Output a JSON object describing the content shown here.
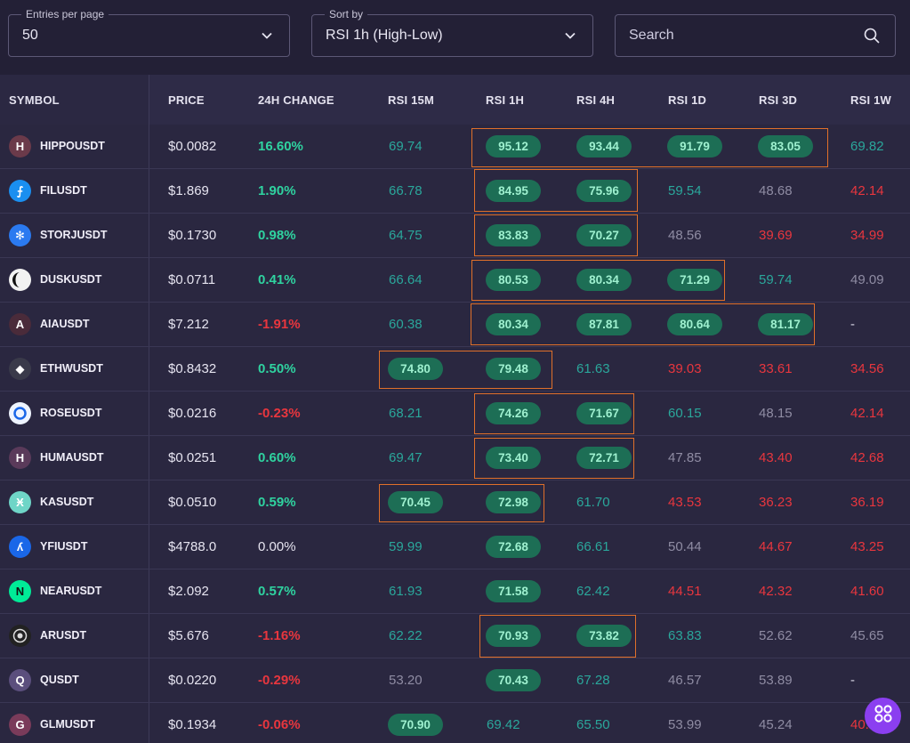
{
  "controls": {
    "entries_label": "Entries per page",
    "entries_value": "50",
    "sort_label": "Sort by",
    "sort_value": "RSI 1h (High-Low)",
    "search_placeholder": "Search"
  },
  "columns": [
    "SYMBOL",
    "PRICE",
    "24H CHANGE",
    "RSI 15M",
    "RSI 1H",
    "RSI 4H",
    "RSI 1D",
    "RSI 3D",
    "RSI 1W"
  ],
  "colors": {
    "background": "#232036",
    "header": "#2e2b47",
    "positive": "#2fd3a0",
    "negative": "#e8363e",
    "pill_bg": "#1d6e55",
    "highlight_border": "#e0702a",
    "fab": "#8b3ff0"
  },
  "rows": [
    {
      "symbol": "HIPPOUSDT",
      "icon": "hippo-icon",
      "avatar_letter": "H",
      "price": "$0.0082",
      "change": "16.60%",
      "rsi": [
        "69.74",
        "95.12",
        "93.44",
        "91.79",
        "83.05",
        "69.82"
      ]
    },
    {
      "symbol": "FILUSDT",
      "icon": "filecoin-icon",
      "avatar_letter": "⨍",
      "price": "$1.869",
      "change": "1.90%",
      "rsi": [
        "66.78",
        "84.95",
        "75.96",
        "59.54",
        "48.68",
        "42.14"
      ]
    },
    {
      "symbol": "STORJUSDT",
      "icon": "storj-icon",
      "avatar_letter": "✻",
      "price": "$0.1730",
      "change": "0.98%",
      "rsi": [
        "64.75",
        "83.83",
        "70.27",
        "48.56",
        "39.69",
        "34.99"
      ]
    },
    {
      "symbol": "DUSKUSDT",
      "icon": "dusk-icon",
      "avatar_letter": "",
      "price": "$0.0711",
      "change": "0.41%",
      "rsi": [
        "66.64",
        "80.53",
        "80.34",
        "71.29",
        "59.74",
        "49.09"
      ]
    },
    {
      "symbol": "AIAUSDT",
      "icon": "aia-icon",
      "avatar_letter": "A",
      "price": "$7.212",
      "change": "-1.91%",
      "rsi": [
        "60.38",
        "80.34",
        "87.81",
        "80.64",
        "81.17",
        "-"
      ]
    },
    {
      "symbol": "ETHWUSDT",
      "icon": "ethereum-icon",
      "avatar_letter": "◆",
      "price": "$0.8432",
      "change": "0.50%",
      "rsi": [
        "74.80",
        "79.48",
        "61.63",
        "39.03",
        "33.61",
        "34.56"
      ]
    },
    {
      "symbol": "ROSEUSDT",
      "icon": "rose-icon",
      "avatar_letter": "",
      "price": "$0.0216",
      "change": "-0.23%",
      "rsi": [
        "68.21",
        "74.26",
        "71.67",
        "60.15",
        "48.15",
        "42.14"
      ]
    },
    {
      "symbol": "HUMAUSDT",
      "icon": "huma-icon",
      "avatar_letter": "H",
      "price": "$0.0251",
      "change": "0.60%",
      "rsi": [
        "69.47",
        "73.40",
        "72.71",
        "47.85",
        "43.40",
        "42.68"
      ]
    },
    {
      "symbol": "KASUSDT",
      "icon": "kaspa-icon",
      "avatar_letter": "Ӿ",
      "price": "$0.0510",
      "change": "0.59%",
      "rsi": [
        "70.45",
        "72.98",
        "61.70",
        "43.53",
        "36.23",
        "36.19"
      ]
    },
    {
      "symbol": "YFIUSDT",
      "icon": "yearn-icon",
      "avatar_letter": "ʎ",
      "price": "$4788.0",
      "change": "0.00%",
      "rsi": [
        "59.99",
        "72.68",
        "66.61",
        "50.44",
        "44.67",
        "43.25"
      ]
    },
    {
      "symbol": "NEARUSDT",
      "icon": "near-icon",
      "avatar_letter": "N",
      "price": "$2.092",
      "change": "0.57%",
      "rsi": [
        "61.93",
        "71.58",
        "62.42",
        "44.51",
        "42.32",
        "41.60"
      ]
    },
    {
      "symbol": "ARUSDT",
      "icon": "arweave-icon",
      "avatar_letter": "",
      "price": "$5.676",
      "change": "-1.16%",
      "rsi": [
        "62.22",
        "70.93",
        "73.82",
        "63.83",
        "52.62",
        "45.65"
      ]
    },
    {
      "symbol": "QUSDT",
      "icon": "q-icon",
      "avatar_letter": "Q",
      "price": "$0.0220",
      "change": "-0.29%",
      "rsi": [
        "53.20",
        "70.43",
        "67.28",
        "46.57",
        "53.89",
        "-"
      ]
    },
    {
      "symbol": "GLMUSDT",
      "icon": "golem-icon",
      "avatar_letter": "G",
      "price": "$0.1934",
      "change": "-0.06%",
      "rsi": [
        "70.90",
        "69.42",
        "65.50",
        "53.99",
        "45.24",
        "40.81"
      ]
    }
  ]
}
